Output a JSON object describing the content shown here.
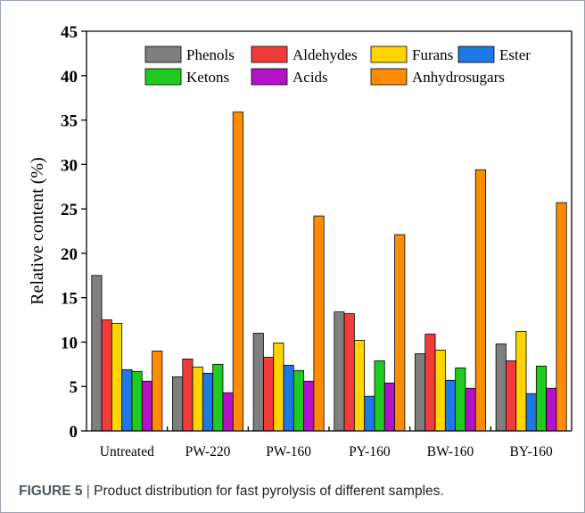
{
  "chart_data": {
    "type": "bar",
    "title": "",
    "xlabel": "",
    "ylabel": "Relative content (%)",
    "ylim": [
      0,
      45
    ],
    "yticks": [
      0,
      5,
      10,
      15,
      20,
      25,
      30,
      35,
      40,
      45
    ],
    "categories": [
      "Untreated",
      "PW-220",
      "PW-160",
      "PY-160",
      "BW-160",
      "BY-160"
    ],
    "series": [
      {
        "name": "Phenols",
        "color": "#7f7f7f",
        "values": [
          17.5,
          6.1,
          11.0,
          13.4,
          8.7,
          9.8
        ]
      },
      {
        "name": "Aldehydes",
        "color": "#f23c3c",
        "values": [
          12.5,
          8.1,
          8.3,
          13.2,
          10.9,
          7.9
        ]
      },
      {
        "name": "Furans",
        "color": "#ffd400",
        "values": [
          12.1,
          7.2,
          9.9,
          10.2,
          9.1,
          11.2
        ]
      },
      {
        "name": "Ester",
        "color": "#1e78e6",
        "values": [
          6.9,
          6.5,
          7.4,
          3.9,
          5.7,
          4.2
        ]
      },
      {
        "name": "Ketons",
        "color": "#1ecb1e",
        "values": [
          6.7,
          7.5,
          6.8,
          7.9,
          7.1,
          7.3
        ]
      },
      {
        "name": "Acids",
        "color": "#b412c8",
        "values": [
          5.6,
          4.3,
          5.6,
          5.4,
          4.8,
          4.8
        ]
      },
      {
        "name": "Anhydrosugars",
        "color": "#ff8c00",
        "values": [
          9.0,
          35.9,
          24.2,
          22.1,
          29.4,
          25.7
        ]
      }
    ],
    "legend_position": "top",
    "grid": false
  },
  "caption": {
    "label": "FIGURE 5",
    "separator": "|",
    "text": "Product distribution for fast pyrolysis of different samples."
  }
}
